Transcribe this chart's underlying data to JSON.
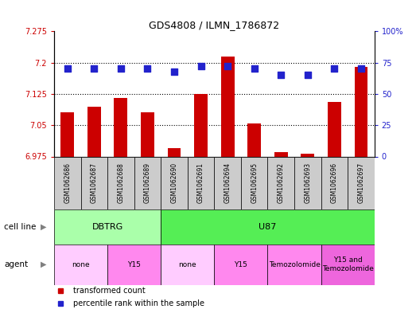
{
  "title": "GDS4808 / ILMN_1786872",
  "samples": [
    "GSM1062686",
    "GSM1062687",
    "GSM1062688",
    "GSM1062689",
    "GSM1062690",
    "GSM1062691",
    "GSM1062694",
    "GSM1062695",
    "GSM1062692",
    "GSM1062693",
    "GSM1062696",
    "GSM1062697"
  ],
  "transformed_count": [
    7.08,
    7.095,
    7.115,
    7.08,
    6.995,
    7.125,
    7.215,
    7.055,
    6.985,
    6.982,
    7.105,
    7.19
  ],
  "percentile_rank": [
    70,
    70,
    70,
    70,
    68,
    72,
    72,
    70,
    65,
    65,
    70,
    70
  ],
  "ylim_left": [
    6.975,
    7.275
  ],
  "ylim_right": [
    0,
    100
  ],
  "yticks_left": [
    6.975,
    7.05,
    7.125,
    7.2,
    7.275
  ],
  "yticks_right": [
    0,
    25,
    50,
    75,
    100
  ],
  "ytick_labels_left": [
    "6.975",
    "7.05",
    "7.125",
    "7.2",
    "7.275"
  ],
  "ytick_labels_right": [
    "0",
    "25",
    "50",
    "75",
    "100%"
  ],
  "bar_color": "#cc0000",
  "dot_color": "#2222cc",
  "cell_line_groups": [
    {
      "label": "DBTRG",
      "start": 0,
      "end": 4,
      "color": "#aaffaa"
    },
    {
      "label": "U87",
      "start": 4,
      "end": 12,
      "color": "#55ee55"
    }
  ],
  "agent_groups": [
    {
      "label": "none",
      "start": 0,
      "end": 2,
      "color": "#ffccff"
    },
    {
      "label": "Y15",
      "start": 2,
      "end": 4,
      "color": "#ff88ee"
    },
    {
      "label": "none",
      "start": 4,
      "end": 6,
      "color": "#ffccff"
    },
    {
      "label": "Y15",
      "start": 6,
      "end": 8,
      "color": "#ff88ee"
    },
    {
      "label": "Temozolomide",
      "start": 8,
      "end": 10,
      "color": "#ff88ee"
    },
    {
      "label": "Y15 and\nTemozolomide",
      "start": 10,
      "end": 12,
      "color": "#ee66dd"
    }
  ],
  "legend_items": [
    {
      "label": "transformed count",
      "color": "#cc0000"
    },
    {
      "label": "percentile rank within the sample",
      "color": "#2222cc"
    }
  ],
  "sample_bg_color": "#cccccc",
  "bar_width": 0.5,
  "dot_size": 28
}
